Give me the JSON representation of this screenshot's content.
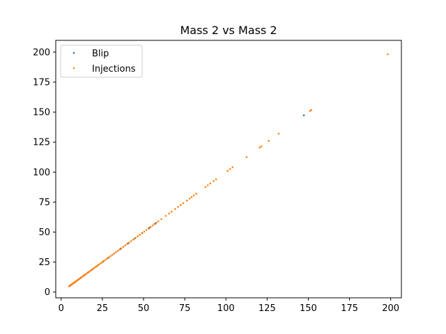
{
  "chart_data": {
    "type": "scatter",
    "title": "Mass 2 vs Mass 2",
    "xlabel": "",
    "ylabel": "",
    "xlim": [
      -3.3,
      206.5
    ],
    "ylim": [
      -4.8,
      209.8
    ],
    "xticks": [
      0,
      25,
      50,
      75,
      100,
      125,
      150,
      175,
      200
    ],
    "yticks": [
      0,
      25,
      50,
      75,
      100,
      125,
      150,
      175,
      200
    ],
    "grid": false,
    "legend_position": "top-left",
    "series": [
      {
        "name": "Blip",
        "color": "#1f77b4",
        "points": [
          [
            5.2,
            5.2
          ],
          [
            6.0,
            6.0
          ],
          [
            6.8,
            6.8
          ],
          [
            7.5,
            7.5
          ],
          [
            8.3,
            8.3
          ],
          [
            9.1,
            9.1
          ],
          [
            10.4,
            10.4
          ],
          [
            12.0,
            12.0
          ],
          [
            14.2,
            14.2
          ],
          [
            16.5,
            16.5
          ],
          [
            19.0,
            19.0
          ],
          [
            22.3,
            22.3
          ],
          [
            25.4,
            25.4
          ],
          [
            28.7,
            28.7
          ],
          [
            32.1,
            32.1
          ],
          [
            36.0,
            36.0
          ],
          [
            40.5,
            40.5
          ],
          [
            44.8,
            44.8
          ],
          [
            49.2,
            49.2
          ],
          [
            53.5,
            53.5
          ],
          [
            57.0,
            57.0
          ],
          [
            147.3,
            147.3
          ]
        ]
      },
      {
        "name": "Injections",
        "color": "#ff7f0e",
        "points": [
          [
            4.8,
            4.8
          ],
          [
            5.0,
            5.0
          ],
          [
            5.3,
            5.3
          ],
          [
            5.5,
            5.5
          ],
          [
            5.8,
            5.8
          ],
          [
            6.1,
            6.1
          ],
          [
            6.4,
            6.4
          ],
          [
            6.7,
            6.7
          ],
          [
            7.0,
            7.0
          ],
          [
            7.4,
            7.4
          ],
          [
            7.8,
            7.8
          ],
          [
            8.2,
            8.2
          ],
          [
            8.6,
            8.6
          ],
          [
            9.0,
            9.0
          ],
          [
            9.5,
            9.5
          ],
          [
            10.0,
            10.0
          ],
          [
            10.5,
            10.5
          ],
          [
            11.0,
            11.0
          ],
          [
            11.6,
            11.6
          ],
          [
            12.2,
            12.2
          ],
          [
            12.8,
            12.8
          ],
          [
            13.4,
            13.4
          ],
          [
            14.0,
            14.0
          ],
          [
            14.7,
            14.7
          ],
          [
            15.4,
            15.4
          ],
          [
            16.1,
            16.1
          ],
          [
            16.8,
            16.8
          ],
          [
            17.5,
            17.5
          ],
          [
            18.3,
            18.3
          ],
          [
            19.1,
            19.1
          ],
          [
            19.9,
            19.9
          ],
          [
            20.7,
            20.7
          ],
          [
            21.5,
            21.5
          ],
          [
            22.4,
            22.4
          ],
          [
            23.3,
            23.3
          ],
          [
            24.2,
            24.2
          ],
          [
            25.1,
            25.1
          ],
          [
            26.0,
            26.0
          ],
          [
            27.0,
            27.0
          ],
          [
            28.0,
            28.0
          ],
          [
            29.0,
            29.0
          ],
          [
            30.0,
            30.0
          ],
          [
            31.0,
            31.0
          ],
          [
            32.1,
            32.1
          ],
          [
            33.2,
            33.2
          ],
          [
            34.3,
            34.3
          ],
          [
            35.4,
            35.4
          ],
          [
            36.5,
            36.5
          ],
          [
            37.7,
            37.7
          ],
          [
            38.9,
            38.9
          ],
          [
            40.1,
            40.1
          ],
          [
            41.3,
            41.3
          ],
          [
            42.5,
            42.5
          ],
          [
            43.8,
            43.8
          ],
          [
            45.1,
            45.1
          ],
          [
            46.4,
            46.4
          ],
          [
            47.7,
            47.7
          ],
          [
            49.0,
            49.0
          ],
          [
            50.4,
            50.4
          ],
          [
            51.8,
            51.8
          ],
          [
            53.0,
            53.0
          ],
          [
            54.3,
            54.3
          ],
          [
            55.5,
            55.5
          ],
          [
            56.6,
            56.6
          ],
          [
            57.8,
            57.8
          ],
          [
            59.0,
            59.0
          ],
          [
            60.8,
            60.8
          ],
          [
            63.5,
            63.5
          ],
          [
            65.5,
            65.5
          ],
          [
            67.0,
            67.0
          ],
          [
            69.2,
            69.2
          ],
          [
            71.0,
            71.0
          ],
          [
            72.5,
            72.5
          ],
          [
            74.0,
            74.0
          ],
          [
            76.3,
            76.3
          ],
          [
            78.0,
            78.0
          ],
          [
            79.2,
            79.2
          ],
          [
            80.5,
            80.5
          ],
          [
            82.0,
            82.0
          ],
          [
            87.5,
            87.5
          ],
          [
            89.0,
            89.0
          ],
          [
            90.5,
            90.5
          ],
          [
            92.5,
            92.5
          ],
          [
            94.0,
            94.0
          ],
          [
            101.0,
            101.0
          ],
          [
            102.5,
            102.5
          ],
          [
            104.0,
            104.0
          ],
          [
            112.5,
            112.5
          ],
          [
            120.5,
            120.5
          ],
          [
            121.5,
            121.5
          ],
          [
            126.0,
            126.0
          ],
          [
            132.0,
            132.0
          ],
          [
            151.0,
            151.0
          ],
          [
            151.8,
            151.8
          ],
          [
            198.2,
            198.2
          ]
        ]
      }
    ]
  }
}
